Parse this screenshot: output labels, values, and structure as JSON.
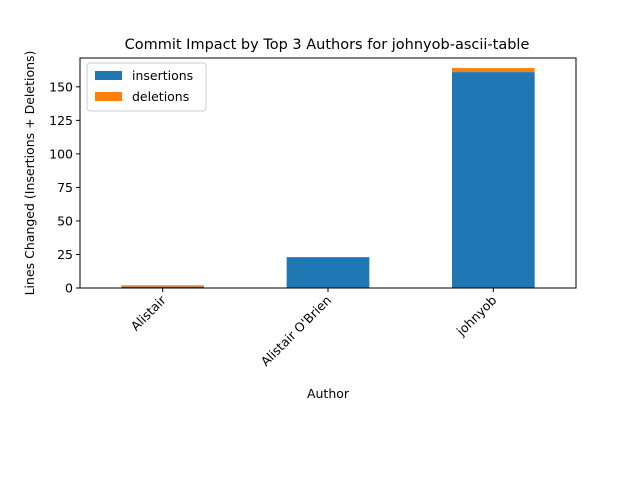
{
  "chart_data": {
    "type": "bar",
    "stacked": true,
    "title": "Commit Impact by Top 3 Authors for johnyob-ascii-table",
    "xlabel": "Author",
    "ylabel": "Lines Changed (Insertions + Deletions)",
    "categories": [
      "Alistair",
      "Alistair O'Brien",
      "johnyob"
    ],
    "series": [
      {
        "name": "insertions",
        "values": [
          1,
          23,
          161
        ],
        "color": "#1f77b4"
      },
      {
        "name": "deletions",
        "values": [
          1,
          0,
          3
        ],
        "color": "#ff7f0e"
      }
    ],
    "ylim": [
      0,
      171.5
    ],
    "yticks": [
      0,
      25,
      50,
      75,
      100,
      125,
      150
    ],
    "grid": false,
    "legend": "top-left"
  }
}
